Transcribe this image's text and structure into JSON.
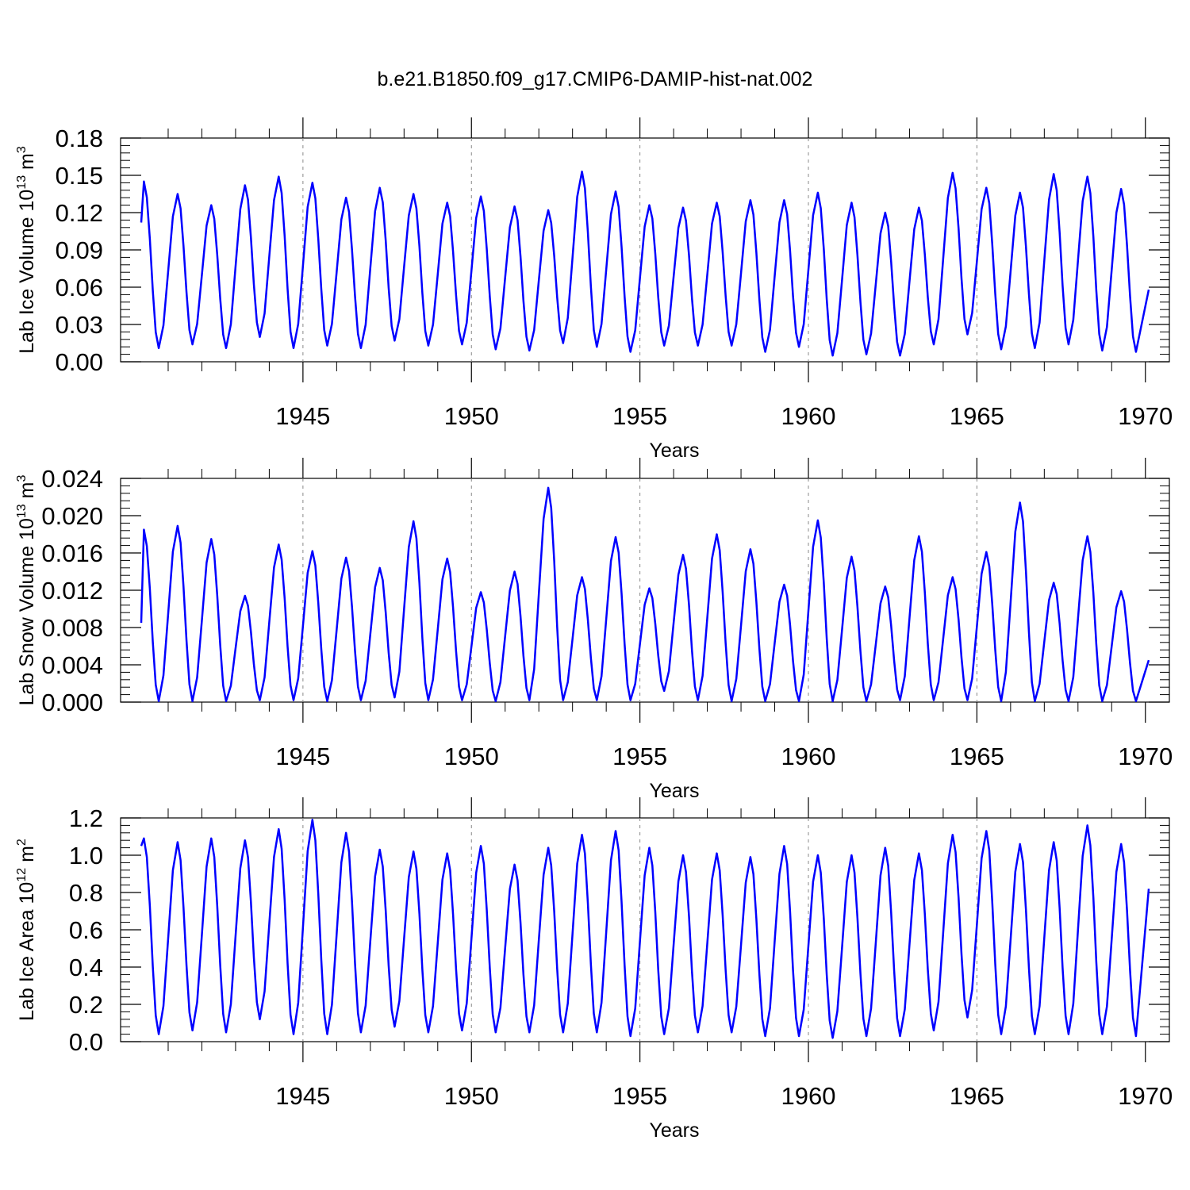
{
  "title": "b.e21.B1850.f09_g17.CMIP6-DAMIP-hist-nat.002",
  "colors": {
    "line": "#0000ff",
    "frame": "#000000",
    "gridline": "#888888"
  },
  "chart_data": [
    {
      "type": "line",
      "ylabel": {
        "base": "Lab Ice Volume 10",
        "exp": "13",
        "unit": " m",
        "unit_exp": "3"
      },
      "xlabel": "Years",
      "xlim": [
        1940.2,
        1970.1
      ],
      "ylim": [
        0.0,
        0.18
      ],
      "yticks": [
        "0.00",
        "0.03",
        "0.06",
        "0.09",
        "0.12",
        "0.15",
        "0.18"
      ],
      "yminor_step": 0.006,
      "xticks": [
        "1945",
        "1950",
        "1955",
        "1960",
        "1965",
        "1970"
      ],
      "grid": "dashed vertical at major x ticks",
      "series": [
        {
          "peaks": [
            0.145,
            0.135,
            0.126,
            0.142,
            0.149,
            0.144,
            0.132,
            0.14,
            0.135,
            0.128,
            0.133,
            0.125,
            0.122,
            0.153,
            0.137,
            0.126,
            0.124,
            0.128,
            0.13,
            0.13,
            0.136,
            0.128,
            0.12,
            0.124,
            0.152,
            0.14,
            0.136,
            0.151,
            0.149,
            0.139
          ],
          "troughs": [
            0.011,
            0.014,
            0.011,
            0.02,
            0.011,
            0.013,
            0.011,
            0.017,
            0.013,
            0.014,
            0.01,
            0.009,
            0.015,
            0.012,
            0.008,
            0.013,
            0.013,
            0.013,
            0.008,
            0.012,
            0.005,
            0.006,
            0.005,
            0.014,
            0.022,
            0.01,
            0.011,
            0.014,
            0.009,
            0.008
          ],
          "start": 0.112,
          "end": 0.058
        }
      ]
    },
    {
      "type": "line",
      "ylabel": {
        "base": "Lab Snow Volume 10",
        "exp": "13",
        "unit": " m",
        "unit_exp": "3"
      },
      "xlabel": "Years",
      "xlim": [
        1940.2,
        1970.1
      ],
      "ylim": [
        0.0,
        0.024
      ],
      "yticks": [
        "0.000",
        "0.004",
        "0.008",
        "0.012",
        "0.016",
        "0.020",
        "0.024"
      ],
      "yminor_step": 0.0008,
      "xticks": [
        "1945",
        "1950",
        "1955",
        "1960",
        "1965",
        "1970"
      ],
      "grid": "dashed vertical at major x ticks",
      "series": [
        {
          "peaks": [
            0.0185,
            0.0189,
            0.0175,
            0.0114,
            0.0169,
            0.0162,
            0.0155,
            0.0144,
            0.0194,
            0.0154,
            0.0118,
            0.014,
            0.023,
            0.0134,
            0.0177,
            0.0122,
            0.0158,
            0.018,
            0.0164,
            0.0126,
            0.0195,
            0.0156,
            0.0124,
            0.0178,
            0.0134,
            0.0161,
            0.0214,
            0.0128,
            0.0178,
            0.0119
          ],
          "troughs": [
            0.0001,
            0.0001,
            0.0001,
            0.0002,
            0.0002,
            0.0001,
            0.0002,
            0.0005,
            0.0002,
            0.0002,
            0.0001,
            0.0002,
            0.0002,
            0.0002,
            0.0002,
            0.0012,
            0.0002,
            0.0001,
            0.0001,
            0.0001,
            0.0001,
            0.0001,
            0.0002,
            0.0002,
            0.0002,
            0.0001,
            0.0001,
            0.0001,
            0.0001,
            0.0001
          ],
          "start": 0.0085,
          "end": 0.0045
        }
      ]
    },
    {
      "type": "line",
      "ylabel": {
        "base": "Lab Ice Area 10",
        "exp": "12",
        "unit": " m",
        "unit_exp": "2"
      },
      "xlabel": "Years",
      "xlim": [
        1940.2,
        1970.1
      ],
      "ylim": [
        0.0,
        1.2
      ],
      "yticks": [
        "0.0",
        "0.2",
        "0.4",
        "0.6",
        "0.8",
        "1.0",
        "1.2"
      ],
      "yminor_step": 0.04,
      "xticks": [
        "1945",
        "1950",
        "1955",
        "1960",
        "1965",
        "1970"
      ],
      "grid": "dashed vertical at major x ticks",
      "series": [
        {
          "peaks": [
            1.09,
            1.07,
            1.09,
            1.08,
            1.14,
            1.19,
            1.12,
            1.03,
            1.02,
            1.01,
            1.05,
            0.95,
            1.04,
            1.11,
            1.13,
            1.04,
            1.0,
            1.01,
            0.99,
            1.05,
            1.0,
            1.0,
            1.04,
            1.01,
            1.11,
            1.13,
            1.06,
            1.07,
            1.16,
            1.06
          ],
          "troughs": [
            0.04,
            0.06,
            0.05,
            0.12,
            0.04,
            0.04,
            0.05,
            0.08,
            0.05,
            0.06,
            0.05,
            0.05,
            0.05,
            0.05,
            0.03,
            0.04,
            0.05,
            0.05,
            0.03,
            0.03,
            0.02,
            0.03,
            0.03,
            0.06,
            0.13,
            0.04,
            0.04,
            0.04,
            0.04,
            0.03
          ],
          "start": 1.05,
          "end": 0.82
        }
      ]
    }
  ]
}
